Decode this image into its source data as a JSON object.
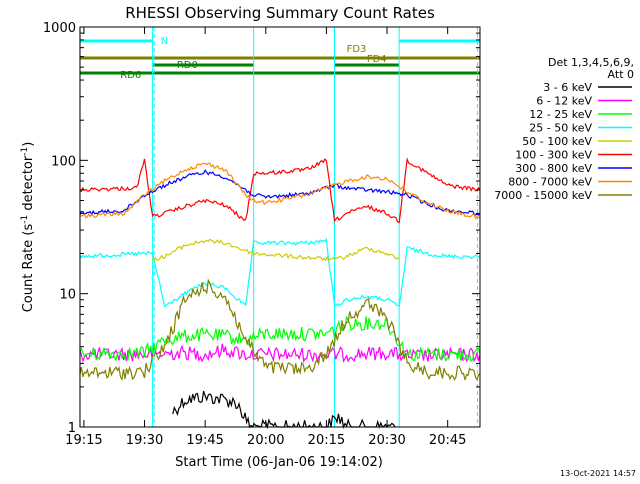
{
  "chart_data": {
    "type": "line",
    "title": "RHESSI Observing Summary Count Rates",
    "xlabel": "Start Time (06-Jan-06 19:14:02)",
    "ylabel": "Count Rate (s⁻¹ detector⁻¹)",
    "ylabel_parts": {
      "main": "Count Rate (s",
      "sup1": "-1",
      "mid": " detector",
      "sup2": "-1",
      "end": ")"
    },
    "y_scale": "log",
    "ylim": [
      1,
      1000
    ],
    "xlim": [
      "19:14:02",
      "20:53:00"
    ],
    "x_ticks": [
      "19:15",
      "19:30",
      "19:45",
      "20:00",
      "20:15",
      "20:30",
      "20:45"
    ],
    "y_ticks": [
      "1",
      "10",
      "100",
      "1000"
    ],
    "legend_header": [
      "Det 1,3,4,5,6,9,",
      "Att 0"
    ],
    "legend_position": "right",
    "timestamp": "13-Oct-2021 14:57",
    "grid": false,
    "series": [
      {
        "name": "3 - 6 keV",
        "color": "#000000",
        "x": [
          "19:37",
          "19:40",
          "19:45",
          "19:50",
          "19:53",
          "19:56",
          "20:00",
          "20:05",
          "20:10",
          "20:15",
          "20:18",
          "20:20",
          "20:25",
          "20:30",
          "20:32"
        ],
        "values": [
          1.3,
          1.6,
          1.7,
          1.6,
          1.5,
          1.0,
          1.0,
          1.0,
          1.0,
          1.0,
          1.2,
          1.0,
          1.0,
          1.0,
          1.0
        ]
      },
      {
        "name": "6 - 12 keV",
        "color": "#ff00ff",
        "x": [
          "19:14",
          "19:30",
          "19:40",
          "19:45",
          "19:50",
          "19:55",
          "20:00",
          "20:15",
          "20:20",
          "20:30",
          "20:35",
          "20:53"
        ],
        "values": [
          3.5,
          3.5,
          3.6,
          3.5,
          3.8,
          3.5,
          3.5,
          3.5,
          3.5,
          3.6,
          3.4,
          3.5
        ]
      },
      {
        "name": "12 - 25 keV",
        "color": "#00ff00",
        "x": [
          "19:14",
          "19:30",
          "19:35",
          "19:40",
          "19:45",
          "19:50",
          "19:55",
          "20:00",
          "20:10",
          "20:15",
          "20:20",
          "20:30",
          "20:35",
          "20:53"
        ],
        "values": [
          3.5,
          3.6,
          4.5,
          4.8,
          4.9,
          4.8,
          4.5,
          5.0,
          5.0,
          5.0,
          6.0,
          6.0,
          3.5,
          3.5
        ]
      },
      {
        "name": "25 - 50 keV",
        "color": "#00ffff",
        "x": [
          "19:14",
          "19:30",
          "19:32",
          "19:35",
          "19:40",
          "19:45",
          "19:50",
          "19:55",
          "19:57",
          "20:00",
          "20:10",
          "20:15",
          "20:17",
          "20:20",
          "20:25",
          "20:30",
          "20:33",
          "20:35",
          "20:40",
          "20:45",
          "20:53"
        ],
        "values": [
          19,
          20,
          20,
          8,
          10,
          12,
          11,
          8,
          24,
          24,
          24,
          25,
          8,
          9,
          9.5,
          9,
          8,
          22,
          20,
          19,
          19
        ]
      },
      {
        "name": "50 - 100 keV",
        "color": "#cccc00",
        "x": [
          "19:32",
          "19:35",
          "19:40",
          "19:45",
          "19:50",
          "19:55",
          "19:57",
          "20:17",
          "20:20",
          "20:25",
          "20:30",
          "20:33"
        ],
        "values": [
          18,
          19,
          23,
          25,
          24,
          21,
          20,
          18,
          19,
          22,
          20,
          18
        ]
      },
      {
        "name": "100 - 300 keV",
        "color": "#ff0000",
        "x": [
          "19:14",
          "19:28",
          "19:30",
          "19:32",
          "19:35",
          "19:40",
          "19:45",
          "19:50",
          "19:55",
          "19:57",
          "20:00",
          "20:10",
          "20:15",
          "20:17",
          "20:20",
          "20:25",
          "20:30",
          "20:33",
          "20:35",
          "20:40",
          "20:45",
          "20:53"
        ],
        "values": [
          60,
          62,
          100,
          38,
          40,
          45,
          50,
          46,
          35,
          80,
          80,
          85,
          100,
          35,
          40,
          45,
          40,
          35,
          100,
          80,
          65,
          60
        ]
      },
      {
        "name": "300 - 800 keV",
        "color": "#0000ff",
        "x": [
          "19:14",
          "19:25",
          "19:30",
          "19:35",
          "19:40",
          "19:45",
          "19:50",
          "19:55",
          "19:57",
          "20:00",
          "20:10",
          "20:17",
          "20:20",
          "20:25",
          "20:30",
          "20:35",
          "20:40",
          "20:45",
          "20:53"
        ],
        "values": [
          40,
          42,
          55,
          65,
          75,
          82,
          75,
          60,
          55,
          53,
          56,
          65,
          62,
          60,
          58,
          55,
          47,
          42,
          40
        ]
      },
      {
        "name": "800 - 7000 keV",
        "color": "#ff8800",
        "x": [
          "19:14",
          "19:25",
          "19:30",
          "19:35",
          "19:40",
          "19:45",
          "19:50",
          "19:55",
          "19:57",
          "20:00",
          "20:10",
          "20:17",
          "20:20",
          "20:25",
          "20:30",
          "20:35",
          "20:40",
          "20:45",
          "20:53"
        ],
        "values": [
          38,
          40,
          55,
          70,
          85,
          95,
          85,
          55,
          50,
          48,
          55,
          65,
          70,
          75,
          73,
          58,
          48,
          42,
          37
        ]
      },
      {
        "name": "7000 - 15000 keV",
        "color": "#808000",
        "x": [
          "19:14",
          "19:30",
          "19:35",
          "19:40",
          "19:45",
          "19:50",
          "19:55",
          "20:00",
          "20:10",
          "20:15",
          "20:20",
          "20:25",
          "20:30",
          "20:35",
          "20:40",
          "20:53"
        ],
        "values": [
          2.5,
          2.6,
          4.0,
          9.0,
          11.5,
          9.5,
          4.5,
          2.8,
          2.7,
          3.5,
          6.5,
          8.5,
          6.5,
          3.0,
          2.6,
          2.5
        ]
      }
    ],
    "annotations": {
      "bars": [
        {
          "label": "N",
          "color": "#00ffff",
          "segments": [
            [
              "19:14",
              "19:32"
            ],
            [
              "20:33",
              "20:53"
            ]
          ]
        },
        {
          "label": "FD3",
          "color": "#808000",
          "segments": [
            [
              "19:14",
              "20:53"
            ]
          ]
        },
        {
          "label": "FD4",
          "color": "#808000",
          "segments": [
            [
              "20:18",
              "20:35"
            ]
          ]
        },
        {
          "label": "RD0",
          "color": "#008000",
          "segments": [
            [
              "19:32",
              "19:57"
            ],
            [
              "20:17",
              "20:33"
            ]
          ]
        },
        {
          "label": "RD6",
          "color": "#008000",
          "segments": [
            [
              "19:14",
              "20:53"
            ]
          ]
        }
      ],
      "vlines_solid": [
        "19:14",
        "19:32",
        "19:57",
        "20:17",
        "20:33"
      ],
      "vlines_dashed": [
        "19:32",
        "20:52"
      ]
    }
  }
}
